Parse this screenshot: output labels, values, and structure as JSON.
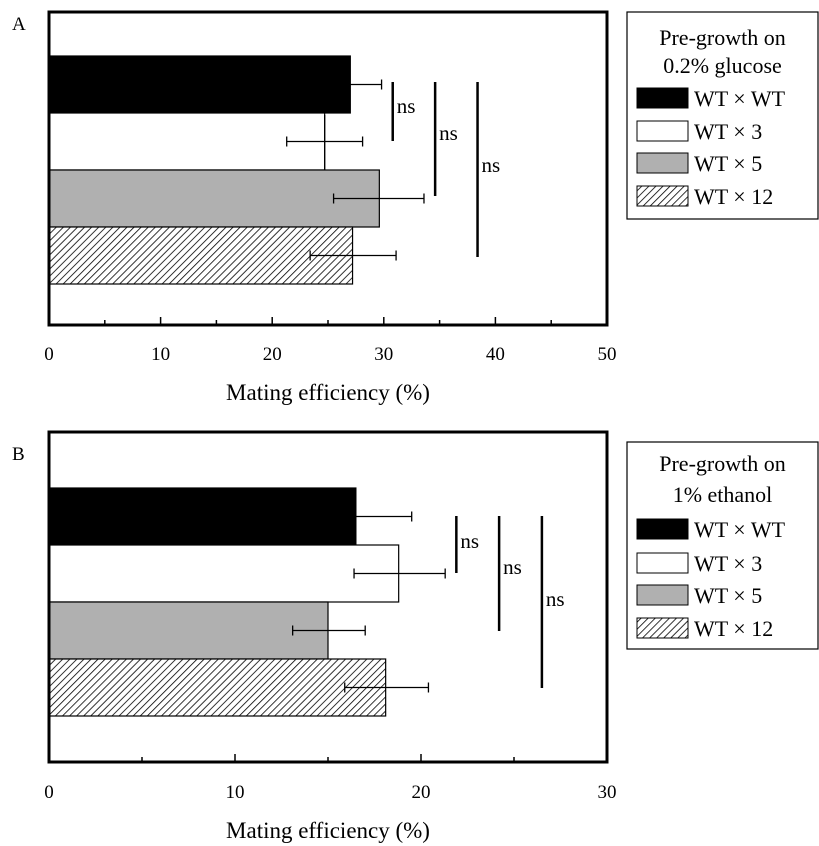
{
  "chart_data": [
    {
      "type": "bar",
      "orientation": "horizontal",
      "panel_label": "A",
      "xlabel": "Mating efficiency (%)",
      "xlim": [
        0,
        50
      ],
      "xticks": [
        0,
        10,
        20,
        30,
        40,
        50
      ],
      "legend_title": [
        "Pre-growth on",
        "0.2% glucose"
      ],
      "legend_placement": "right",
      "series": [
        {
          "name": "WT × WT",
          "value": 27,
          "error_low": 26.8,
          "error_high": 29.8,
          "fill": "black"
        },
        {
          "name": "WT × 3",
          "value": 24.7,
          "error_low": 21.3,
          "error_high": 28.1,
          "fill": "white"
        },
        {
          "name": "WT × 5",
          "value": 29.6,
          "error_low": 25.5,
          "error_high": 33.6,
          "fill": "gray"
        },
        {
          "name": "WT × 12",
          "value": 27.2,
          "error_low": 23.4,
          "error_high": 31.1,
          "fill": "hatch"
        }
      ],
      "comparisons": [
        {
          "label": "ns",
          "x": 30.8
        },
        {
          "label": "ns",
          "x": 34.6
        },
        {
          "label": "ns",
          "x": 38.4
        }
      ]
    },
    {
      "type": "bar",
      "orientation": "horizontal",
      "panel_label": "B",
      "xlabel": "Mating efficiency (%)",
      "xlim": [
        0,
        30
      ],
      "xticks": [
        0,
        10,
        20,
        30
      ],
      "legend_title": [
        "Pre-growth on",
        "1% ethanol"
      ],
      "legend_placement": "right",
      "series": [
        {
          "name": "WT × WT",
          "value": 16.5,
          "error_low": 16.4,
          "error_high": 19.5,
          "fill": "black"
        },
        {
          "name": "WT × 3",
          "value": 18.8,
          "error_low": 16.4,
          "error_high": 21.3,
          "fill": "white"
        },
        {
          "name": "WT × 5",
          "value": 15,
          "error_low": 13.1,
          "error_high": 17,
          "fill": "gray"
        },
        {
          "name": "WT × 12",
          "value": 18.1,
          "error_low": 15.9,
          "error_high": 20.4,
          "fill": "hatch"
        }
      ],
      "comparisons": [
        {
          "label": "ns",
          "x": 21.9
        },
        {
          "label": "ns",
          "x": 24.2
        },
        {
          "label": "ns",
          "x": 26.5
        }
      ]
    }
  ],
  "colors": {
    "black": "#000000",
    "white": "#ffffff",
    "gray": "#b0b0b0",
    "hatch_line": "#000000"
  }
}
